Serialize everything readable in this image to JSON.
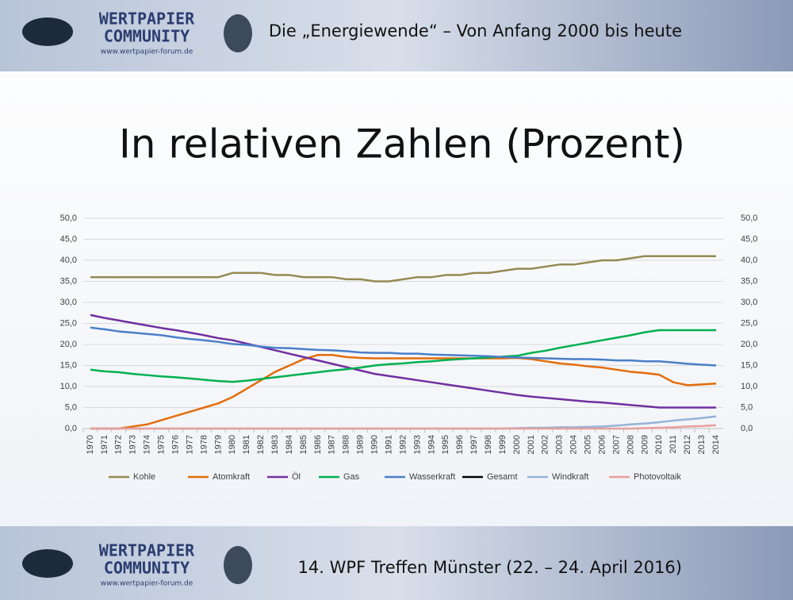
{
  "header": {
    "title": "Die „Energiewende“ – Von Anfang 2000 bis heute"
  },
  "logo": {
    "line1": "WERTPAPIER",
    "line2": "COMMUNITY",
    "url": "www.wertpapier-forum.de"
  },
  "footer": {
    "text": "14. WPF Treffen Münster (22. – 24. April 2016)"
  },
  "chart_data": {
    "type": "line",
    "title": "In relativen Zahlen (Prozent)",
    "categories": [
      "1970",
      "1971",
      "1972",
      "1973",
      "1974",
      "1975",
      "1976",
      "1977",
      "1978",
      "1979",
      "1980",
      "1981",
      "1982",
      "1983",
      "1984",
      "1985",
      "1986",
      "1987",
      "1988",
      "1989",
      "1990",
      "1991",
      "1992",
      "1993",
      "1994",
      "1995",
      "1996",
      "1997",
      "1998",
      "1999",
      "2000",
      "2001",
      "2002",
      "2003",
      "2004",
      "2005",
      "2006",
      "2007",
      "2008",
      "2009",
      "2010",
      "2011",
      "2012",
      "2013",
      "2014"
    ],
    "ylim": [
      0,
      50
    ],
    "yticks": [
      {
        "value": 0,
        "label": "0,0"
      },
      {
        "value": 5,
        "label": "5,0"
      },
      {
        "value": 10,
        "label": "10,0"
      },
      {
        "value": 15,
        "label": "15,0"
      },
      {
        "value": 20,
        "label": "20,0"
      },
      {
        "value": 25,
        "label": "25,0"
      },
      {
        "value": 30,
        "label": "30,0"
      },
      {
        "value": 35,
        "label": "35,0"
      },
      {
        "value": 40,
        "label": "40,0"
      },
      {
        "value": 45,
        "label": "45,0"
      },
      {
        "value": 50,
        "label": "50,0"
      }
    ],
    "grid": true,
    "legend": "bottom",
    "series": [
      {
        "name": "Kohle",
        "color": "#948a54",
        "values": [
          36,
          36,
          36,
          36,
          36,
          36,
          36,
          36,
          36,
          36,
          37,
          37,
          37,
          36.5,
          36.5,
          36,
          36,
          36,
          35.5,
          35.5,
          35,
          35,
          35.5,
          36,
          36,
          36.5,
          36.5,
          37,
          37,
          37.5,
          38,
          38,
          38.5,
          39,
          39,
          39.5,
          40,
          40,
          40.5,
          41,
          41,
          41,
          41,
          41,
          41
        ]
      },
      {
        "name": "Atomkraft",
        "color": "#e46c0a",
        "values": [
          0,
          0,
          0,
          0.5,
          1,
          2,
          3,
          4,
          5,
          6,
          7.5,
          9.5,
          11.5,
          13.5,
          15,
          16.5,
          17.5,
          17.5,
          17,
          16.8,
          16.7,
          16.7,
          16.7,
          16.7,
          16.7,
          16.7,
          16.7,
          16.7,
          16.7,
          16.7,
          16.8,
          16.5,
          16,
          15.5,
          15.2,
          14.8,
          14.5,
          14,
          13.5,
          13.2,
          12.8,
          11,
          10.3,
          10.5,
          10.7
        ]
      },
      {
        "name": "Öl",
        "color": "#7030a0",
        "values": [
          27,
          26.3,
          25.7,
          25.1,
          24.5,
          23.9,
          23.4,
          22.8,
          22.2,
          21.5,
          21,
          20.2,
          19.4,
          18.6,
          17.8,
          17,
          16.2,
          15.4,
          14.6,
          13.8,
          13,
          12.5,
          12,
          11.5,
          11,
          10.5,
          10,
          9.5,
          9,
          8.5,
          8,
          7.6,
          7.3,
          7,
          6.7,
          6.4,
          6.2,
          5.9,
          5.6,
          5.3,
          5,
          5,
          5,
          5,
          5
        ]
      },
      {
        "name": "Gas",
        "color": "#00b050",
        "values": [
          14,
          13.6,
          13.4,
          13,
          12.7,
          12.4,
          12.2,
          11.9,
          11.6,
          11.3,
          11.1,
          11.4,
          11.8,
          12.2,
          12.6,
          13,
          13.4,
          13.8,
          14.1,
          14.5,
          15,
          15.3,
          15.5,
          15.8,
          16,
          16.3,
          16.5,
          16.7,
          16.9,
          17.1,
          17.3,
          18,
          18.5,
          19.2,
          19.8,
          20.4,
          21,
          21.6,
          22.2,
          22.9,
          23.4,
          23.4,
          23.4,
          23.4,
          23.4
        ]
      },
      {
        "name": "Wasserkraft",
        "color": "#4a7fc8",
        "values": [
          24,
          23.6,
          23.1,
          22.8,
          22.5,
          22.2,
          21.7,
          21.3,
          21,
          20.6,
          20.1,
          19.9,
          19.5,
          19.2,
          19.1,
          18.9,
          18.7,
          18.6,
          18.4,
          18.1,
          18,
          18,
          17.8,
          17.8,
          17.6,
          17.5,
          17.4,
          17.3,
          17.2,
          17,
          16.9,
          16.8,
          16.7,
          16.6,
          16.5,
          16.5,
          16.4,
          16.2,
          16.2,
          16,
          16,
          15.7,
          15.4,
          15.2,
          15
        ]
      },
      {
        "name": "Gesamt",
        "color": "#000000",
        "values": [
          null,
          null,
          null,
          null,
          null,
          null,
          null,
          null,
          null,
          null,
          null,
          null,
          null,
          null,
          null,
          null,
          null,
          null,
          null,
          null,
          null,
          null,
          null,
          null,
          null,
          null,
          null,
          null,
          null,
          null,
          null,
          null,
          null,
          null,
          null,
          null,
          null,
          null,
          null,
          null,
          null,
          null,
          null,
          null,
          null
        ]
      },
      {
        "name": "Windkraft",
        "color": "#95b3d7",
        "values": [
          0,
          0,
          0,
          0,
          0,
          0,
          0,
          0,
          0,
          0,
          0,
          0,
          0,
          0,
          0,
          0,
          0,
          0,
          0,
          0,
          0,
          0,
          0,
          0,
          0,
          0,
          0,
          0,
          0,
          0,
          0.1,
          0.2,
          0.2,
          0.3,
          0.3,
          0.4,
          0.5,
          0.7,
          1,
          1.2,
          1.5,
          1.9,
          2.2,
          2.5,
          2.9
        ]
      },
      {
        "name": "Photovoltaik",
        "color": "#e6a09c",
        "values": [
          0,
          0,
          0,
          0,
          0,
          0,
          0,
          0,
          0,
          0,
          0,
          0,
          0,
          0,
          0,
          0,
          0,
          0,
          0,
          0,
          0,
          0,
          0,
          0,
          0,
          0,
          0,
          0,
          0,
          0,
          0,
          0,
          0,
          0,
          0,
          0,
          0,
          0,
          0,
          0.1,
          0.2,
          0.3,
          0.5,
          0.6,
          0.8
        ]
      }
    ]
  }
}
